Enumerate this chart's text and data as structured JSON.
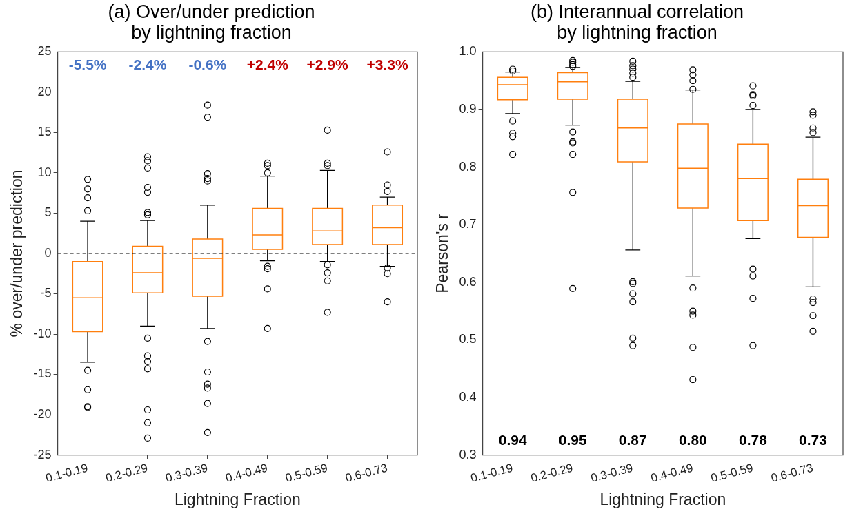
{
  "chart_data": [
    {
      "type": "box",
      "title": "(a) Over/under prediction\nby lightning fraction",
      "xlabel": "Lightning Fraction",
      "ylabel": "% over/under prediction",
      "categories": [
        "0.1-0.19",
        "0.2-0.29",
        "0.3-0.39",
        "0.4-0.49",
        "0.5-0.59",
        "0.6-0.73"
      ],
      "series": [
        {
          "color": "#ff7f0e",
          "boxes": [
            {
              "low": -13.5,
              "q1": -9.7,
              "median": -5.5,
              "q3": -1.0,
              "high": 4.0,
              "outliers": [
                9.2,
                8.0,
                6.9,
                5.3,
                -14.5,
                -16.9,
                -19.0,
                -19.1
              ]
            },
            {
              "low": -9.0,
              "q1": -4.9,
              "median": -2.4,
              "q3": 0.9,
              "high": 4.1,
              "outliers": [
                12.0,
                11.5,
                10.6,
                8.2,
                7.6,
                5.1,
                4.8,
                -10.5,
                -12.7,
                -13.4,
                -14.3,
                -19.4,
                -21.0,
                -22.9
              ]
            },
            {
              "low": -9.3,
              "q1": -5.3,
              "median": -0.6,
              "q3": 1.8,
              "high": 6.0,
              "outliers": [
                18.4,
                16.9,
                9.9,
                9.3,
                9.0,
                -10.9,
                -14.7,
                -16.2,
                -16.7,
                -18.6,
                -22.2
              ]
            },
            {
              "low": -0.9,
              "q1": 0.5,
              "median": 2.3,
              "q3": 5.6,
              "high": 9.6,
              "outliers": [
                11.2,
                10.9,
                10.0,
                -1.6,
                -1.9,
                -4.4,
                -9.3
              ]
            },
            {
              "low": -1.0,
              "q1": 1.1,
              "median": 2.8,
              "q3": 5.6,
              "high": 10.3,
              "outliers": [
                15.3,
                11.2,
                10.9,
                -1.4,
                -2.4,
                -3.4,
                -7.3
              ]
            },
            {
              "low": -1.6,
              "q1": 1.1,
              "median": 3.2,
              "q3": 6.0,
              "high": 7.0,
              "outliers": [
                12.6,
                8.5,
                7.7,
                -1.8,
                -2.5,
                -6.0
              ]
            }
          ]
        }
      ],
      "ylim": [
        -25,
        25
      ],
      "yticks": [
        -25,
        -20,
        -15,
        -10,
        -5,
        0,
        5,
        10,
        15,
        20,
        25
      ],
      "ref_lines": [
        {
          "axis": "y",
          "value": 0,
          "color": "#000000",
          "line_style": "dashed"
        }
      ],
      "annotations": [
        "-5.5%",
        "-2.4%",
        "-0.6%",
        "+2.4%",
        "+2.9%",
        "+3.3%"
      ],
      "marker": "circle",
      "grid": false,
      "legend": false
    },
    {
      "type": "box",
      "title": "(b) Interannual correlation\nby lightning fraction",
      "xlabel": "Lightning Fraction",
      "ylabel": "Pearson's r",
      "categories": [
        "0.1-0.19",
        "0.2-0.29",
        "0.3-0.39",
        "0.4-0.49",
        "0.5-0.59",
        "0.6-0.73"
      ],
      "series": [
        {
          "color": "#ff7f0e",
          "boxes": [
            {
              "low": 0.893,
              "q1": 0.917,
              "median": 0.943,
              "q3": 0.956,
              "high": 0.965,
              "outliers": [
                0.97,
                0.967,
                0.88,
                0.859,
                0.853,
                0.822
              ]
            },
            {
              "low": 0.873,
              "q1": 0.918,
              "median": 0.948,
              "q3": 0.964,
              "high": 0.973,
              "outliers": [
                0.985,
                0.982,
                0.978,
                0.975,
                0.861,
                0.844,
                0.842,
                0.822,
                0.756,
                0.589
              ]
            },
            {
              "low": 0.656,
              "q1": 0.809,
              "median": 0.868,
              "q3": 0.918,
              "high": 0.949,
              "outliers": [
                0.984,
                0.976,
                0.97,
                0.963,
                0.956,
                0.601,
                0.598,
                0.58,
                0.566,
                0.503,
                0.49
              ]
            },
            {
              "low": 0.611,
              "q1": 0.729,
              "median": 0.798,
              "q3": 0.875,
              "high": 0.934,
              "outliers": [
                0.969,
                0.96,
                0.95,
                0.935,
                0.59,
                0.55,
                0.543,
                0.487,
                0.431
              ]
            },
            {
              "low": 0.676,
              "q1": 0.707,
              "median": 0.78,
              "q3": 0.84,
              "high": 0.9,
              "outliers": [
                0.941,
                0.926,
                0.924,
                0.907,
                0.623,
                0.611,
                0.572,
                0.49
              ]
            },
            {
              "low": 0.592,
              "q1": 0.678,
              "median": 0.733,
              "q3": 0.779,
              "high": 0.852,
              "outliers": [
                0.896,
                0.89,
                0.868,
                0.86,
                0.571,
                0.565,
                0.542,
                0.515
              ]
            }
          ]
        }
      ],
      "ylim": [
        0.3,
        1.0
      ],
      "yticks": [
        {
          "value": 0.3,
          "label": "0.3"
        },
        {
          "value": 0.4,
          "label": "0.4"
        },
        {
          "value": 0.5,
          "label": "0.5"
        },
        {
          "value": 0.6,
          "label": "0.6"
        },
        {
          "value": 0.7,
          "label": "0.7"
        },
        {
          "value": 0.8,
          "label": "0.8"
        },
        {
          "value": 0.9,
          "label": "0.9"
        },
        {
          "value": 1.0,
          "label": "1.0"
        }
      ],
      "annotations": [
        "0.94",
        "0.95",
        "0.87",
        "0.80",
        "0.78",
        "0.73"
      ],
      "marker": "circle",
      "grid": false,
      "legend": false
    }
  ]
}
